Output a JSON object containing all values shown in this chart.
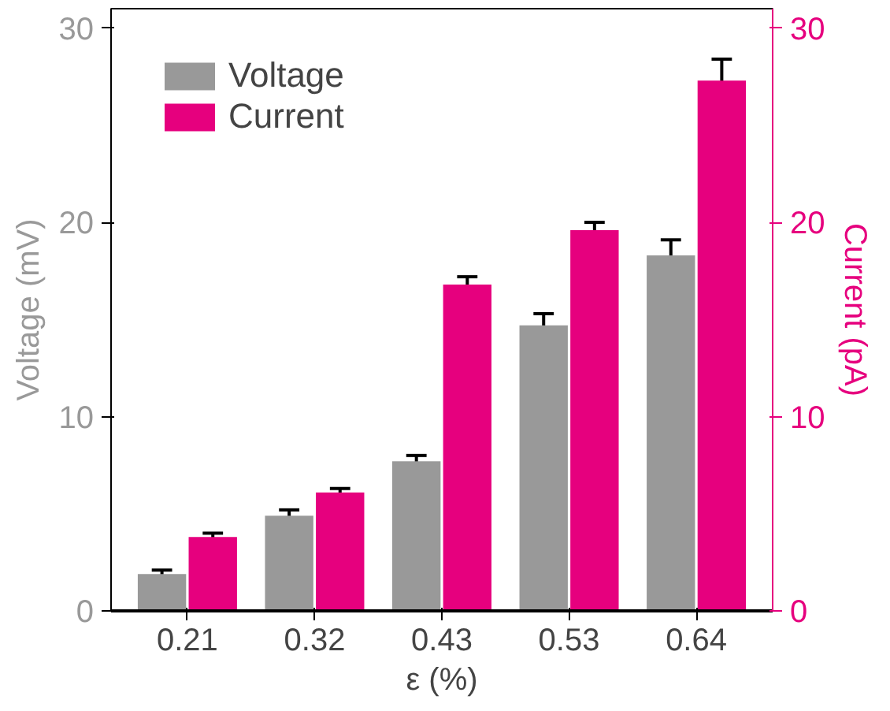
{
  "chart_data": {
    "type": "bar",
    "categories": [
      "0.21",
      "0.32",
      "0.43",
      "0.53",
      "0.64"
    ],
    "xlabel": "ε (%)",
    "ylabel": "Voltage (mV)",
    "y2label": "Current (pA)",
    "series": [
      {
        "name": "Voltage",
        "color": "#999999",
        "values": [
          1.9,
          4.9,
          7.7,
          14.7,
          18.3
        ],
        "errors": [
          0.2,
          0.3,
          0.3,
          0.6,
          0.8
        ]
      },
      {
        "name": "Current",
        "color": "#e6007e",
        "axis": "y2",
        "values": [
          3.8,
          6.1,
          16.8,
          19.6,
          27.3
        ],
        "errors": [
          0.2,
          0.2,
          0.4,
          0.4,
          1.1
        ]
      }
    ],
    "ylim": [
      0,
      31
    ],
    "yticks": [
      0,
      10,
      20,
      30
    ],
    "y2lim": [
      0,
      31
    ],
    "y2ticks": [
      0,
      10,
      20,
      30
    ],
    "legend": "top left",
    "grid": false
  }
}
